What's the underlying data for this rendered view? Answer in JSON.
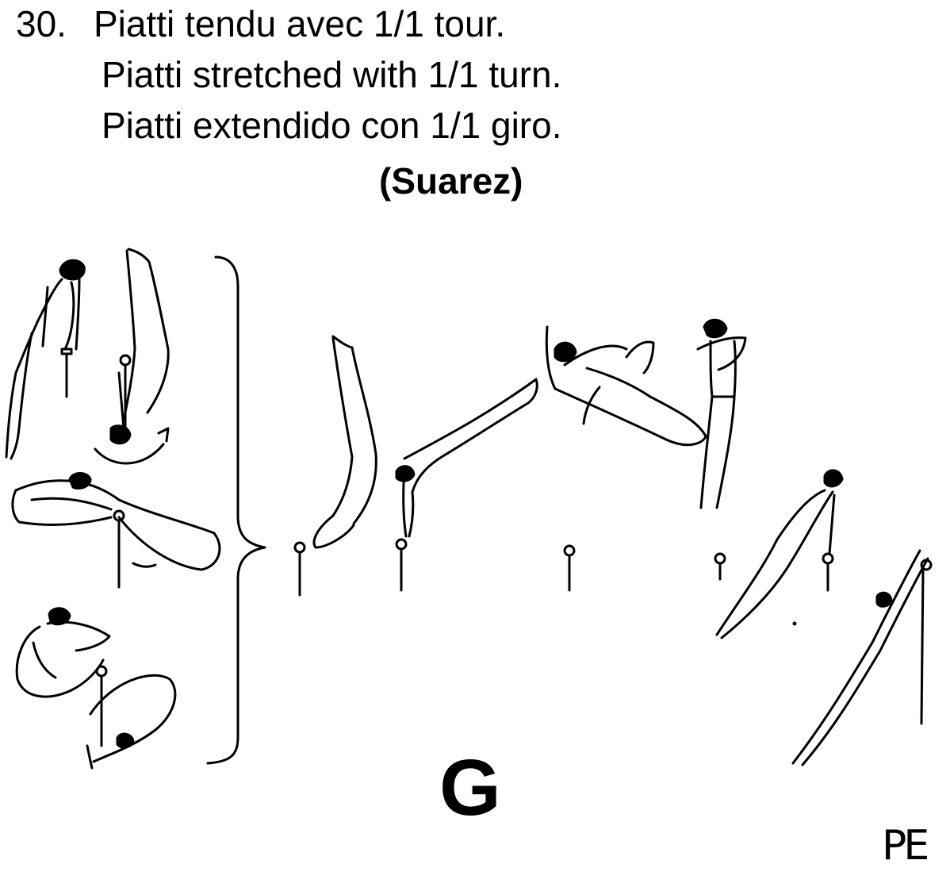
{
  "element": {
    "number": "30.",
    "name_fr": "Piatti tendu avec 1/1 tour.",
    "name_en": "Piatti stretched with 1/1 turn.",
    "name_es": "Piatti extendido con 1/1 giro.",
    "author": "(Suarez)",
    "value": "G",
    "signature": "PE"
  },
  "figures": {
    "line_color": "#000000",
    "background_color": "#ffffff",
    "icon_names": [
      "gymnast-hang-icon",
      "gymnast-inverted-swing-icon",
      "gymnast-pike-front-icon",
      "gymnast-tuck-icon",
      "variant-brace-icon",
      "gymnast-handstand-descent-icon",
      "gymnast-pike-handstand-icon",
      "gymnast-turning-layout-icon",
      "gymnast-upright-stand-icon",
      "gymnast-leaning-hang-icon",
      "gymnast-extended-hang-icon",
      "ring-icon"
    ]
  }
}
